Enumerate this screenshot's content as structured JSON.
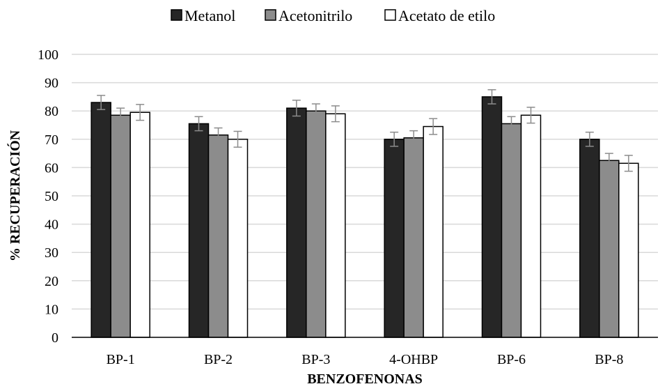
{
  "chart_data": {
    "type": "bar",
    "title": "",
    "xlabel": "BENZOFENONAS",
    "ylabel": "% RECUPERACIÓN",
    "ylim": [
      0,
      100
    ],
    "yticks": [
      0,
      10,
      20,
      30,
      40,
      50,
      60,
      70,
      80,
      90,
      100
    ],
    "grid": true,
    "legend_position": "top",
    "categories": [
      "BP-1",
      "BP-2",
      "BP-3",
      "4-OHBP",
      "BP-6",
      "BP-8"
    ],
    "series": [
      {
        "name": "Metanol",
        "color": "#262626",
        "values": [
          83,
          75.5,
          81,
          70,
          85,
          70
        ],
        "errors": [
          2.5,
          2.5,
          2.8,
          2.5,
          2.5,
          2.5
        ]
      },
      {
        "name": "Acetonitrilo",
        "color": "#8c8c8c",
        "values": [
          78.5,
          71.5,
          80,
          70.5,
          75.5,
          62.5
        ],
        "errors": [
          2.5,
          2.5,
          2.5,
          2.5,
          2.5,
          2.5
        ]
      },
      {
        "name": "Acetato de etilo",
        "color": "#ffffff",
        "values": [
          79.5,
          70,
          79,
          74.5,
          78.5,
          61.5
        ],
        "errors": [
          2.8,
          2.8,
          2.8,
          2.8,
          2.8,
          2.8
        ]
      }
    ]
  }
}
